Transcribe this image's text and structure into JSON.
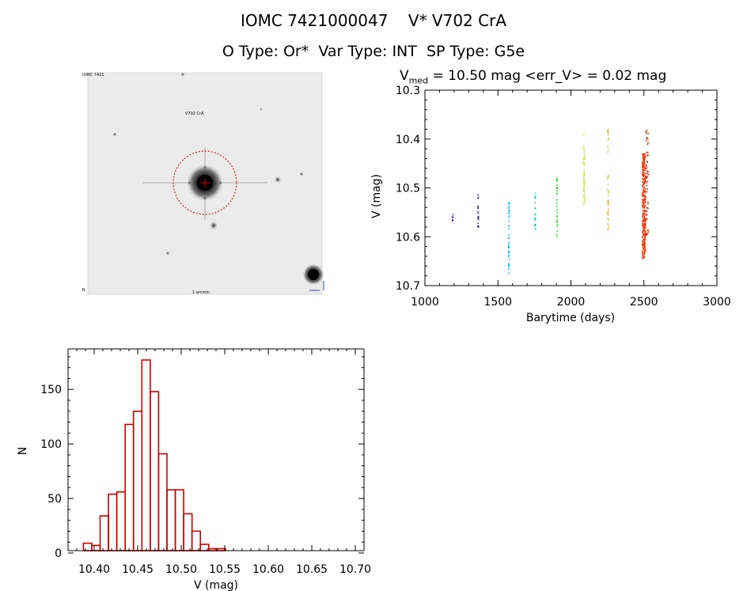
{
  "header": {
    "star_id": "IOMC 7421000047",
    "star_name": "V* V702 CrA",
    "otype_label": "O Type:",
    "otype": "Or*",
    "vartype_label": "Var Type:",
    "vartype": "INT",
    "sptype_label": "SP Type:",
    "sptype": "G5e"
  },
  "thumbnail": {
    "corner_tl": "IOMC 7421",
    "caption_top": "V702 CrA",
    "corner_bl": "N",
    "caption_bottom": "1 arcmin",
    "star_color": "#000000",
    "marker_color": "#cc0000"
  },
  "light_curve_title": {
    "v_symbol": "V",
    "v_sub": "med",
    "vmed_text": "= 10.50 mag",
    "err_text": "<err_V> = 0.02 mag"
  },
  "chart_data": [
    {
      "type": "scatter",
      "name": "light_curve",
      "xlabel": "Barytime (days)",
      "ylabel": "V (mag)",
      "xlim": [
        1000,
        3000
      ],
      "ylim": [
        10.7,
        10.3
      ],
      "y_inverted": true,
      "x_ticks": [
        1000,
        1500,
        2000,
        2500,
        3000
      ],
      "y_ticks": [
        10.3,
        10.4,
        10.5,
        10.6,
        10.7
      ],
      "y_tick_labels": [
        "10.3",
        "10.4",
        "10.5",
        "10.6",
        "10.7"
      ],
      "clusters": [
        {
          "x": 1190,
          "y_min": 10.555,
          "y_max": 10.57,
          "n": 8,
          "color": "#3b0a8c"
        },
        {
          "x": 1365,
          "y_min": 10.51,
          "y_max": 10.585,
          "n": 22,
          "color": "#2a2ab5"
        },
        {
          "x": 1575,
          "y_min": 10.53,
          "y_max": 10.675,
          "n": 40,
          "color": "#00b4e6"
        },
        {
          "x": 1755,
          "y_min": 10.5,
          "y_max": 10.585,
          "n": 20,
          "color": "#00d3a0"
        },
        {
          "x": 1905,
          "y_min": 10.475,
          "y_max": 10.6,
          "n": 30,
          "color": "#20d820"
        },
        {
          "x": 2090,
          "y_min": 10.39,
          "y_max": 10.535,
          "n": 50,
          "color": "#b6e61e"
        },
        {
          "x": 2255,
          "y_min": 10.37,
          "y_max": 10.595,
          "n": 40,
          "color": "#e6b414"
        },
        {
          "x": 2500,
          "y_min": 10.43,
          "y_max": 10.645,
          "n": 320,
          "color": "#f03c0a"
        },
        {
          "x": 2520,
          "y_min": 10.375,
          "y_max": 10.6,
          "n": 60,
          "color": "#e01e00"
        }
      ]
    },
    {
      "type": "bar",
      "name": "histogram",
      "xlabel": "V (mag)",
      "ylabel": "N",
      "xlim": [
        10.37,
        10.71
      ],
      "ylim": [
        0,
        185
      ],
      "x_ticks": [
        10.4,
        10.45,
        10.5,
        10.55,
        10.6,
        10.65,
        10.7
      ],
      "x_tick_labels": [
        "10.40",
        "10.45",
        "10.50",
        "10.55",
        "10.60",
        "10.65",
        "10.70"
      ],
      "y_ticks": [
        0,
        50,
        100,
        150
      ],
      "bin_start": 10.378,
      "bin_width": 0.0096,
      "values": [
        2,
        9,
        7,
        34,
        54,
        56,
        118,
        130,
        177,
        148,
        91,
        58,
        58,
        36,
        20,
        8,
        4,
        4,
        2,
        2,
        2,
        2,
        2
      ],
      "color": "#cc0000"
    }
  ]
}
